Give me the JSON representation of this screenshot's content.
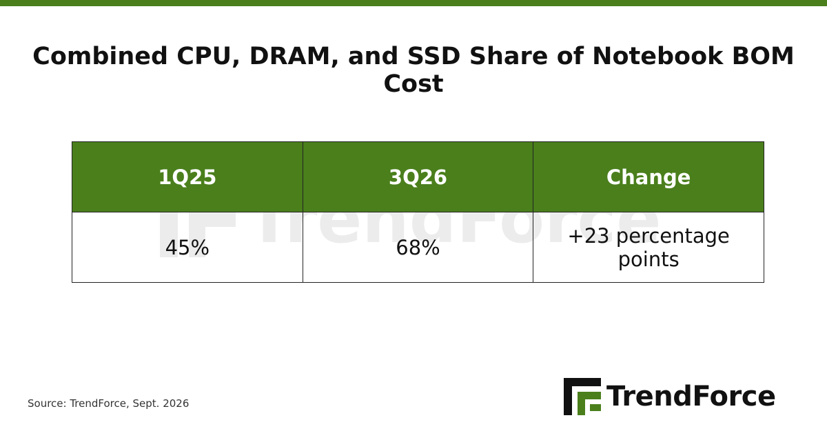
{
  "title": "Combined CPU, DRAM, and SSD Share of Notebook BOM Cost",
  "colors": {
    "accent": "#4a7f1c",
    "text": "#111111",
    "border": "#222222"
  },
  "chart_data": {
    "type": "table",
    "title": "Combined CPU, DRAM, and SSD Share of Notebook BOM Cost",
    "columns": [
      "1Q25",
      "3Q26",
      "Change"
    ],
    "rows": [
      [
        "45%",
        "68%",
        "+23 percentage points"
      ]
    ],
    "values": {
      "1Q25": 45,
      "3Q26": 68,
      "change_pp": 23
    }
  },
  "source": "Source: TrendForce, Sept. 2026",
  "brand": {
    "name": "TrendForce",
    "logo_icon": "trendforce-logo-icon"
  }
}
